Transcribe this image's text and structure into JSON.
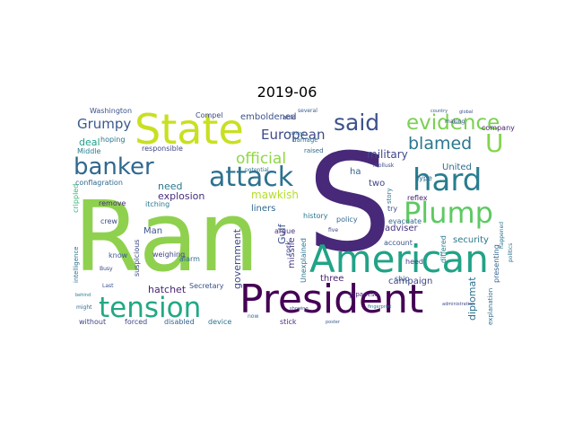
{
  "title": "2019-06",
  "word_cloud": {
    "colormap": "viridis",
    "words": [
      {
        "text": "Ran",
        "color": "#8fd14f"
      },
      {
        "text": "S",
        "color": "#482878"
      },
      {
        "text": "President",
        "color": "#440154"
      },
      {
        "text": "American",
        "color": "#20a386"
      },
      {
        "text": "State",
        "color": "#c8e020"
      },
      {
        "text": "tension",
        "color": "#22a884"
      },
      {
        "text": "attack",
        "color": "#2c728e"
      },
      {
        "text": "hard",
        "color": "#287d8e"
      },
      {
        "text": "Plump",
        "color": "#5ec962"
      },
      {
        "text": "said",
        "color": "#3b528b"
      },
      {
        "text": "evidence",
        "color": "#7ad151"
      },
      {
        "text": "banker",
        "color": "#31688e"
      },
      {
        "text": "blamed",
        "color": "#2a788e"
      },
      {
        "text": "official",
        "color": "#8fd744"
      },
      {
        "text": "U",
        "color": "#84d44b"
      },
      {
        "text": "Grumpy",
        "color": "#38598c"
      },
      {
        "text": "European",
        "color": "#3e4a89"
      },
      {
        "text": "explosion",
        "color": "#472d7b"
      },
      {
        "text": "mawkish",
        "color": "#b5de2b"
      },
      {
        "text": "military",
        "color": "#3f4788"
      },
      {
        "text": "need",
        "color": "#2a788e"
      },
      {
        "text": "deal",
        "color": "#1f9e89"
      },
      {
        "text": "two",
        "color": "#414487"
      },
      {
        "text": "emboldened",
        "color": "#3b528b"
      },
      {
        "text": "liners",
        "color": "#31688e"
      },
      {
        "text": "government",
        "color": "#3e4a89"
      },
      {
        "text": "adviser",
        "color": "#46337e"
      },
      {
        "text": "campaign",
        "color": "#3f4788"
      },
      {
        "text": "security",
        "color": "#2a788e"
      },
      {
        "text": "Gulf",
        "color": "#3b528b"
      },
      {
        "text": "missile",
        "color": "#443a83"
      },
      {
        "text": "three",
        "color": "#481f70"
      },
      {
        "text": "hatchet",
        "color": "#482475"
      },
      {
        "text": "diplomat",
        "color": "#2c728e"
      },
      {
        "text": "Man",
        "color": "#3b528b"
      },
      {
        "text": "ha",
        "color": "#355f8d"
      },
      {
        "text": "United",
        "color": "#2e6e8e"
      },
      {
        "text": "evacuate",
        "color": "#31688e"
      },
      {
        "text": "Compel",
        "color": "#3e4a89"
      },
      {
        "text": "Washington",
        "color": "#3b528b"
      },
      {
        "text": "hoping",
        "color": "#2c728e"
      },
      {
        "text": "responsible",
        "color": "#3f4788"
      },
      {
        "text": "Middle",
        "color": "#287d8e"
      },
      {
        "text": "conflagration",
        "color": "#31688e"
      },
      {
        "text": "crippled",
        "color": "#35b779"
      },
      {
        "text": "intelligence",
        "color": "#2c728e"
      },
      {
        "text": "crew",
        "color": "#3e4a89"
      },
      {
        "text": "remove",
        "color": "#472d7b"
      },
      {
        "text": "itching",
        "color": "#2a788e"
      },
      {
        "text": "suspicious",
        "color": "#3e4a89"
      },
      {
        "text": "weighing",
        "color": "#414487"
      },
      {
        "text": "alarm",
        "color": "#31688e"
      },
      {
        "text": "know",
        "color": "#38598c"
      },
      {
        "text": "Secretary",
        "color": "#3b528b"
      },
      {
        "text": "without",
        "color": "#414487"
      },
      {
        "text": "forced",
        "color": "#3f4788"
      },
      {
        "text": "disabled",
        "color": "#33638d"
      },
      {
        "text": "device",
        "color": "#2c728e"
      },
      {
        "text": "stick",
        "color": "#472d7b"
      },
      {
        "text": "rock",
        "color": "#3e4a89"
      },
      {
        "text": "argue",
        "color": "#46337e"
      },
      {
        "text": "Unexplained",
        "color": "#2c728e"
      },
      {
        "text": "history",
        "color": "#2a788e"
      },
      {
        "text": "policy",
        "color": "#31688e"
      },
      {
        "text": "account",
        "color": "#3b528b"
      },
      {
        "text": "try",
        "color": "#3e4a89"
      },
      {
        "text": "Japanese",
        "color": "#482475"
      },
      {
        "text": "ship",
        "color": "#38598c"
      },
      {
        "text": "heed",
        "color": "#3f4788"
      },
      {
        "text": "reflex",
        "color": "#481f70"
      },
      {
        "text": "story",
        "color": "#2c728e"
      },
      {
        "text": "differed",
        "color": "#287d8e"
      },
      {
        "text": "presenting",
        "color": "#33638d"
      },
      {
        "text": "explanation",
        "color": "#2e6e8e"
      },
      {
        "text": "type",
        "color": "#31688e"
      },
      {
        "text": "company",
        "color": "#482475"
      },
      {
        "text": "able",
        "color": "#3e4a89"
      },
      {
        "text": "damage",
        "color": "#2a788e"
      },
      {
        "text": "raised",
        "color": "#31688e"
      },
      {
        "text": "potential",
        "color": "#2c728e"
      },
      {
        "text": "several",
        "color": "#38598c"
      },
      {
        "text": "happened",
        "color": "#2a788e"
      },
      {
        "text": "making",
        "color": "#3b528b"
      },
      {
        "text": "mollusk",
        "color": "#3e4a89"
      },
      {
        "text": "five",
        "color": "#414487"
      },
      {
        "text": "Last",
        "color": "#3b528b"
      },
      {
        "text": "might",
        "color": "#31688e"
      },
      {
        "text": "behind",
        "color": "#2a788e"
      },
      {
        "text": "Busy",
        "color": "#3f4788"
      },
      {
        "text": "now",
        "color": "#2c728e"
      },
      {
        "text": "poster",
        "color": "#38598c"
      },
      {
        "text": "showing",
        "color": "#3e4a89"
      },
      {
        "text": "leader",
        "color": "#46337e"
      },
      {
        "text": "politics",
        "color": "#2c728e"
      },
      {
        "text": "global",
        "color": "#3b528b"
      },
      {
        "text": "country",
        "color": "#38598c"
      },
      {
        "text": "cutting",
        "color": "#31688e"
      },
      {
        "text": "administration",
        "color": "#3e4a89"
      },
      {
        "text": "fingerprint",
        "color": "#2a788e"
      }
    ]
  }
}
